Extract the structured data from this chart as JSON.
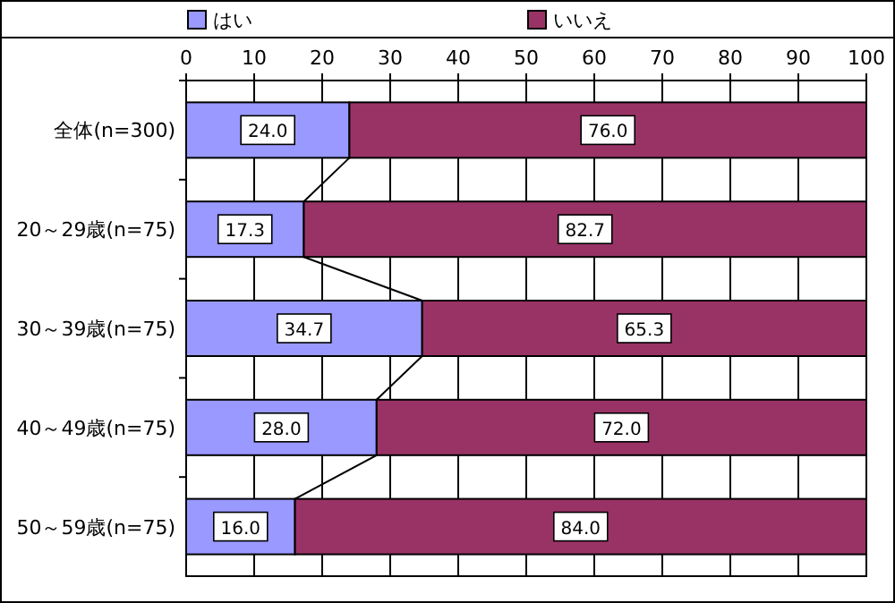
{
  "chart_data": {
    "type": "bar",
    "orientation": "horizontal",
    "stacked": true,
    "categories": [
      "全体(n=300)",
      "20～29歳(n=75)",
      "30～39歳(n=75)",
      "40～49歳(n=75)",
      "50～59歳(n=75)"
    ],
    "series": [
      {
        "name": "はい",
        "color": "#9999ff",
        "values": [
          24.0,
          17.3,
          34.7,
          28.0,
          16.0
        ],
        "value_labels": [
          "24.0",
          "17.3",
          "34.7",
          "28.0",
          "16.0"
        ]
      },
      {
        "name": "いいえ",
        "color": "#993366",
        "values": [
          76.0,
          82.7,
          65.3,
          72.0,
          84.0
        ],
        "value_labels": [
          "76.0",
          "82.7",
          "65.3",
          "72.0",
          "84.0"
        ]
      }
    ],
    "xlim": [
      0,
      100
    ],
    "xticks": [
      0,
      10,
      20,
      30,
      40,
      50,
      60,
      70,
      80,
      90,
      100
    ],
    "grid": "x",
    "legend": "top"
  }
}
